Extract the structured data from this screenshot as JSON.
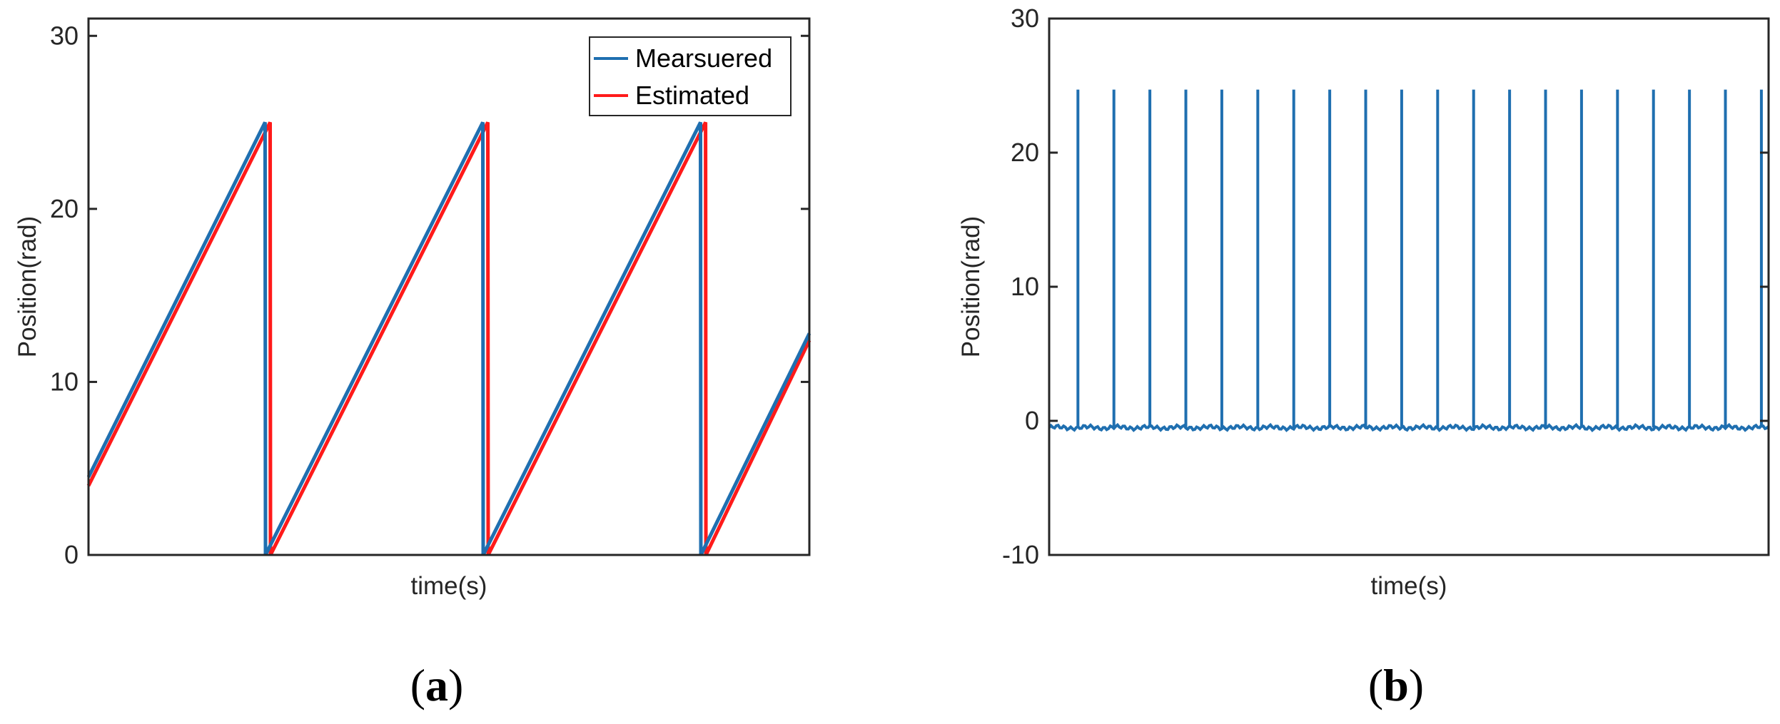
{
  "chart_data": [
    {
      "type": "line",
      "panel": "(a)",
      "panel_letter": "a",
      "title": "",
      "xlabel": "time(s)",
      "ylabel": "Position(rad)",
      "xlim": [
        0,
        1
      ],
      "ylim": [
        0,
        31
      ],
      "yticks": [
        0,
        10,
        20,
        30
      ],
      "ytick_labels": [
        "0",
        "10",
        "20",
        "30"
      ],
      "xticks": [],
      "grid": false,
      "legend": {
        "position": "top-right"
      },
      "colors": {
        "measured": "#1f6fb0",
        "estimated": "#ff1a1a"
      },
      "series": [
        {
          "name": "Mearsuered",
          "color": "#1f6fb0",
          "x": [
            0,
            0.245,
            0.2455,
            0.547,
            0.5475,
            0.849,
            0.8495,
            1.0
          ],
          "y": [
            4.5,
            25.0,
            0.0,
            25.0,
            0.0,
            25.0,
            0.0,
            12.8
          ]
        },
        {
          "name": "Estimated",
          "color": "#ff1a1a",
          "x": [
            0,
            0.252,
            0.2525,
            0.554,
            0.5545,
            0.856,
            0.8565,
            1.0
          ],
          "y": [
            4.0,
            25.0,
            0.0,
            25.0,
            0.0,
            25.0,
            0.0,
            12.4
          ]
        }
      ]
    },
    {
      "type": "line",
      "panel": "(b)",
      "panel_letter": "b",
      "title": "",
      "xlabel": "time(s)",
      "ylabel": "Position(rad)",
      "xlim": [
        0,
        1
      ],
      "ylim": [
        -10,
        30
      ],
      "yticks": [
        -10,
        0,
        10,
        20,
        30
      ],
      "ytick_labels": [
        "-10",
        "0",
        "10",
        "20",
        "30"
      ],
      "xticks": [],
      "grid": false,
      "colors": {
        "line": "#1f6fb0"
      },
      "series": [
        {
          "color": "#1f6fb0",
          "baseline": -0.5,
          "spike_height": 24.7,
          "spike_x": [
            0.04,
            0.09,
            0.14,
            0.19,
            0.24,
            0.29,
            0.34,
            0.39,
            0.44,
            0.49,
            0.54,
            0.59,
            0.64,
            0.69,
            0.74,
            0.79,
            0.84,
            0.89,
            0.94,
            0.99
          ]
        }
      ]
    }
  ]
}
